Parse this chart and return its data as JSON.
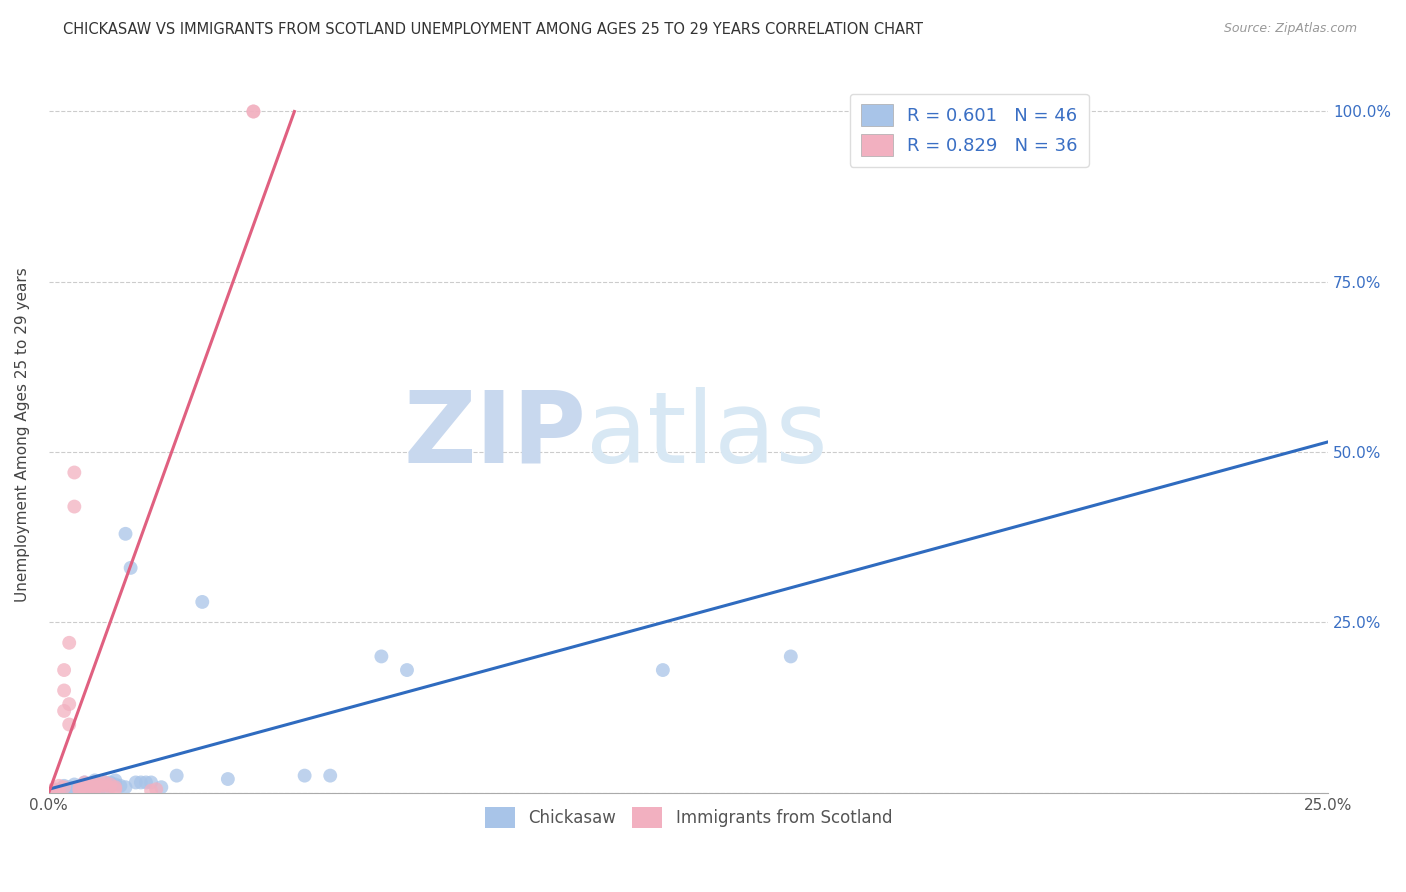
{
  "title": "CHICKASAW VS IMMIGRANTS FROM SCOTLAND UNEMPLOYMENT AMONG AGES 25 TO 29 YEARS CORRELATION CHART",
  "source": "Source: ZipAtlas.com",
  "ylabel": "Unemployment Among Ages 25 to 29 years",
  "xlim": [
    0,
    0.25
  ],
  "ylim": [
    0,
    1.05
  ],
  "x_ticks": [
    0.0,
    0.05,
    0.1,
    0.15,
    0.2,
    0.25
  ],
  "y_ticks": [
    0.0,
    0.25,
    0.5,
    0.75,
    1.0
  ],
  "watermark_zip": "ZIP",
  "watermark_atlas": "atlas",
  "legend_blue_R": "R = 0.601",
  "legend_blue_N": "N = 46",
  "legend_pink_R": "R = 0.829",
  "legend_pink_N": "N = 36",
  "legend_blue_label": "Chickasaw",
  "legend_pink_label": "Immigrants from Scotland",
  "blue_color": "#a8c4e8",
  "pink_color": "#f2b0c0",
  "blue_line_color": "#2f6bbf",
  "pink_line_color": "#e06080",
  "blue_scatter": [
    [
      0.001,
      0.003
    ],
    [
      0.002,
      0.002
    ],
    [
      0.002,
      0.005
    ],
    [
      0.003,
      0.003
    ],
    [
      0.003,
      0.01
    ],
    [
      0.004,
      0.005
    ],
    [
      0.004,
      0.008
    ],
    [
      0.005,
      0.003
    ],
    [
      0.005,
      0.007
    ],
    [
      0.005,
      0.012
    ],
    [
      0.006,
      0.005
    ],
    [
      0.006,
      0.008
    ],
    [
      0.007,
      0.006
    ],
    [
      0.007,
      0.01
    ],
    [
      0.007,
      0.015
    ],
    [
      0.008,
      0.007
    ],
    [
      0.008,
      0.012
    ],
    [
      0.009,
      0.008
    ],
    [
      0.009,
      0.015
    ],
    [
      0.009,
      0.018
    ],
    [
      0.01,
      0.007
    ],
    [
      0.01,
      0.012
    ],
    [
      0.011,
      0.008
    ],
    [
      0.011,
      0.015
    ],
    [
      0.012,
      0.01
    ],
    [
      0.012,
      0.015
    ],
    [
      0.013,
      0.012
    ],
    [
      0.013,
      0.018
    ],
    [
      0.014,
      0.01
    ],
    [
      0.015,
      0.008
    ],
    [
      0.015,
      0.38
    ],
    [
      0.016,
      0.33
    ],
    [
      0.017,
      0.015
    ],
    [
      0.018,
      0.015
    ],
    [
      0.019,
      0.015
    ],
    [
      0.02,
      0.015
    ],
    [
      0.022,
      0.008
    ],
    [
      0.025,
      0.025
    ],
    [
      0.03,
      0.28
    ],
    [
      0.035,
      0.02
    ],
    [
      0.05,
      0.025
    ],
    [
      0.055,
      0.025
    ],
    [
      0.065,
      0.2
    ],
    [
      0.07,
      0.18
    ],
    [
      0.12,
      0.18
    ],
    [
      0.145,
      0.2
    ]
  ],
  "pink_scatter": [
    [
      0.001,
      0.002
    ],
    [
      0.001,
      0.005
    ],
    [
      0.002,
      0.003
    ],
    [
      0.002,
      0.01
    ],
    [
      0.003,
      0.008
    ],
    [
      0.003,
      0.12
    ],
    [
      0.003,
      0.15
    ],
    [
      0.003,
      0.18
    ],
    [
      0.004,
      0.1
    ],
    [
      0.004,
      0.13
    ],
    [
      0.004,
      0.22
    ],
    [
      0.005,
      0.42
    ],
    [
      0.005,
      0.47
    ],
    [
      0.006,
      0.003
    ],
    [
      0.006,
      0.005
    ],
    [
      0.006,
      0.008
    ],
    [
      0.007,
      0.005
    ],
    [
      0.007,
      0.01
    ],
    [
      0.007,
      0.015
    ],
    [
      0.008,
      0.008
    ],
    [
      0.008,
      0.012
    ],
    [
      0.009,
      0.005
    ],
    [
      0.009,
      0.01
    ],
    [
      0.009,
      0.015
    ],
    [
      0.01,
      0.008
    ],
    [
      0.01,
      0.012
    ],
    [
      0.011,
      0.01
    ],
    [
      0.011,
      0.015
    ],
    [
      0.012,
      0.008
    ],
    [
      0.012,
      0.012
    ],
    [
      0.013,
      0.005
    ],
    [
      0.013,
      0.008
    ],
    [
      0.02,
      0.003
    ],
    [
      0.021,
      0.005
    ],
    [
      0.04,
      1.0
    ],
    [
      0.04,
      1.0
    ]
  ],
  "blue_trendline": [
    [
      0.0,
      0.005
    ],
    [
      0.25,
      0.515
    ]
  ],
  "pink_trendline": [
    [
      0.0,
      0.0
    ],
    [
      0.048,
      1.0
    ]
  ]
}
